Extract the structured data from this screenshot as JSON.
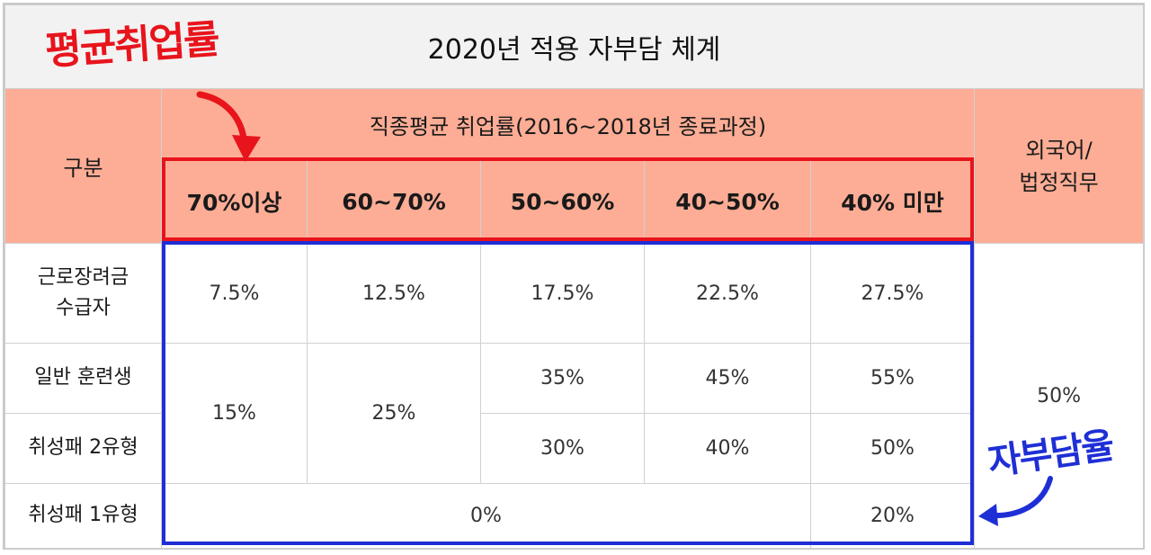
{
  "title": "2020년 적용 자부담 체계",
  "header": {
    "category": "구분",
    "group": "직종평균 취업률(2016~2018년 종료과정)",
    "foreign": [
      "외국어/",
      "법정직무"
    ],
    "columns": [
      "70%이상",
      "60~70%",
      "50~60%",
      "40~50%",
      "40% 미만"
    ]
  },
  "rows": {
    "incentive": {
      "label": [
        "근로장려금",
        "수급자"
      ],
      "values": [
        "7.5%",
        "12.5%",
        "17.5%",
        "22.5%",
        "27.5%"
      ]
    },
    "general": {
      "label": "일반 훈련생",
      "merged": [
        "15%",
        "25%"
      ],
      "values": [
        "35%",
        "45%",
        "55%"
      ]
    },
    "type2": {
      "label": "취성패 2유형",
      "values": [
        "30%",
        "40%",
        "50%"
      ]
    },
    "type1": {
      "label": "취성패 1유형",
      "merged": "0%",
      "last": "20%"
    },
    "foreign_value": "50%"
  },
  "annotations": {
    "red": "평균취업률",
    "blue": "자부담율",
    "colors": {
      "red": "#e8141c",
      "blue": "#1f2fd6",
      "header_bg": "#fdad95",
      "title_bg": "#f2f2f2"
    }
  }
}
